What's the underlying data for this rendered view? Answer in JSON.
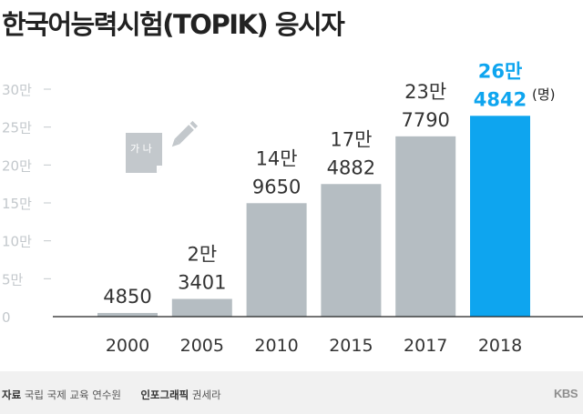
{
  "title": "한국어능력시험(TOPIK) 응시자",
  "colors": {
    "bar": "#b5bdc2",
    "highlight": "#0ea5ef",
    "axis": "#222222",
    "tick": "#c3c8cc",
    "text": "#333333"
  },
  "chart_data": {
    "type": "bar",
    "title": "한국어능력시험(TOPIK) 응시자",
    "categories": [
      "2000",
      "2005",
      "2010",
      "2015",
      "2017",
      "2018"
    ],
    "values": [
      4850,
      23401,
      149650,
      174882,
      237790,
      264842
    ],
    "labels": [
      {
        "top": "",
        "bottom": "4850"
      },
      {
        "top": "2만",
        "bottom": "3401"
      },
      {
        "top": "14만",
        "bottom": "9650"
      },
      {
        "top": "17만",
        "bottom": "4882"
      },
      {
        "top": "23만",
        "bottom": "7790"
      },
      {
        "top": "26만",
        "bottom": "4842"
      }
    ],
    "highlight_index": 5,
    "unit": "(명)",
    "ylim": [
      0,
      300000
    ],
    "yticks": [
      0,
      50000,
      100000,
      150000,
      200000,
      250000,
      300000
    ],
    "ytick_labels": [
      "0",
      "5만",
      "10만",
      "15만",
      "20만",
      "25만",
      "30만"
    ],
    "xlabel": "",
    "ylabel": ""
  },
  "decoration": {
    "icon_text": "가 나"
  },
  "footer": {
    "source_label": "자료",
    "source": "국립 국제 교육 연수원",
    "graphic_label": "인포그래픽",
    "graphic": "권세라",
    "logo": "KBS"
  }
}
